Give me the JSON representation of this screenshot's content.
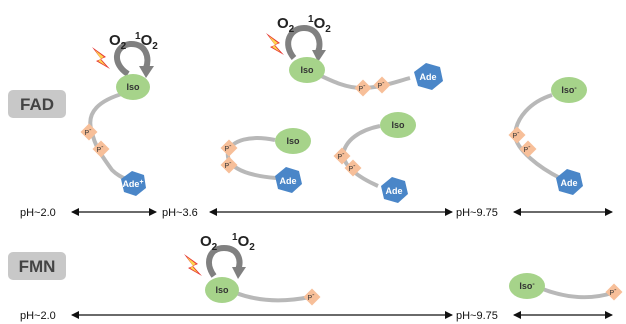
{
  "labels": {
    "fad": "FAD",
    "fmn": "FMN"
  },
  "ph_axis": {
    "fad": [
      "pH~2.0",
      "pH~3.6",
      "pH~9.75"
    ],
    "fmn": [
      "pH~2.0",
      "pH~9.75"
    ]
  },
  "nodes": {
    "iso": "Iso",
    "iso_minus": "Iso",
    "iso_minus_sup": "-",
    "ade": "Ade",
    "ade_plus": "Ade",
    "ade_plus_sup": "+",
    "phosphate": "P",
    "phosphate_sup": "-"
  },
  "photo": {
    "o2": "O",
    "o2_sub": "2",
    "singlet_sup": "1",
    "singlet": "O",
    "singlet_sub": "2"
  },
  "colors": {
    "iso_fill": "#a6d38a",
    "ade_fill": "#4a86c8",
    "phosphate_fill": "#f7bf99",
    "linker": "#b8b8b8",
    "arrow_gray": "#808080",
    "lightning_outer": "#e53935",
    "lightning_inner": "#ffd54f",
    "label_box": "#c8c8c8"
  }
}
